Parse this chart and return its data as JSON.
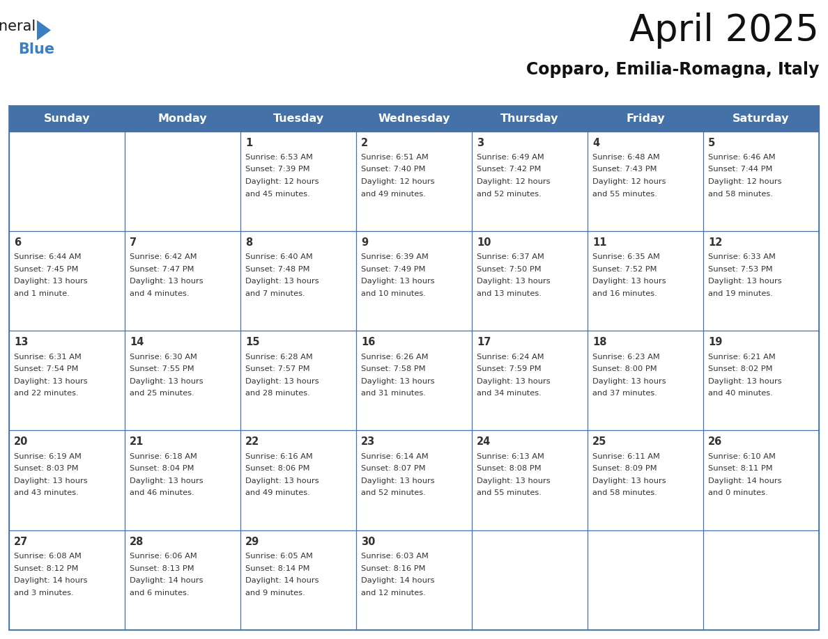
{
  "title": "April 2025",
  "subtitle": "Copparo, Emilia-Romagna, Italy",
  "header_bg": "#4472a8",
  "header_text_color": "#ffffff",
  "cell_bg_light": "#f2f5fb",
  "cell_bg_white": "#ffffff",
  "border_color": "#4472a8",
  "text_color": "#333333",
  "days_of_week": [
    "Sunday",
    "Monday",
    "Tuesday",
    "Wednesday",
    "Thursday",
    "Friday",
    "Saturday"
  ],
  "calendar_data": [
    [
      {
        "day": "",
        "info": ""
      },
      {
        "day": "",
        "info": ""
      },
      {
        "day": "1",
        "info": "Sunrise: 6:53 AM\nSunset: 7:39 PM\nDaylight: 12 hours\nand 45 minutes."
      },
      {
        "day": "2",
        "info": "Sunrise: 6:51 AM\nSunset: 7:40 PM\nDaylight: 12 hours\nand 49 minutes."
      },
      {
        "day": "3",
        "info": "Sunrise: 6:49 AM\nSunset: 7:42 PM\nDaylight: 12 hours\nand 52 minutes."
      },
      {
        "day": "4",
        "info": "Sunrise: 6:48 AM\nSunset: 7:43 PM\nDaylight: 12 hours\nand 55 minutes."
      },
      {
        "day": "5",
        "info": "Sunrise: 6:46 AM\nSunset: 7:44 PM\nDaylight: 12 hours\nand 58 minutes."
      }
    ],
    [
      {
        "day": "6",
        "info": "Sunrise: 6:44 AM\nSunset: 7:45 PM\nDaylight: 13 hours\nand 1 minute."
      },
      {
        "day": "7",
        "info": "Sunrise: 6:42 AM\nSunset: 7:47 PM\nDaylight: 13 hours\nand 4 minutes."
      },
      {
        "day": "8",
        "info": "Sunrise: 6:40 AM\nSunset: 7:48 PM\nDaylight: 13 hours\nand 7 minutes."
      },
      {
        "day": "9",
        "info": "Sunrise: 6:39 AM\nSunset: 7:49 PM\nDaylight: 13 hours\nand 10 minutes."
      },
      {
        "day": "10",
        "info": "Sunrise: 6:37 AM\nSunset: 7:50 PM\nDaylight: 13 hours\nand 13 minutes."
      },
      {
        "day": "11",
        "info": "Sunrise: 6:35 AM\nSunset: 7:52 PM\nDaylight: 13 hours\nand 16 minutes."
      },
      {
        "day": "12",
        "info": "Sunrise: 6:33 AM\nSunset: 7:53 PM\nDaylight: 13 hours\nand 19 minutes."
      }
    ],
    [
      {
        "day": "13",
        "info": "Sunrise: 6:31 AM\nSunset: 7:54 PM\nDaylight: 13 hours\nand 22 minutes."
      },
      {
        "day": "14",
        "info": "Sunrise: 6:30 AM\nSunset: 7:55 PM\nDaylight: 13 hours\nand 25 minutes."
      },
      {
        "day": "15",
        "info": "Sunrise: 6:28 AM\nSunset: 7:57 PM\nDaylight: 13 hours\nand 28 minutes."
      },
      {
        "day": "16",
        "info": "Sunrise: 6:26 AM\nSunset: 7:58 PM\nDaylight: 13 hours\nand 31 minutes."
      },
      {
        "day": "17",
        "info": "Sunrise: 6:24 AM\nSunset: 7:59 PM\nDaylight: 13 hours\nand 34 minutes."
      },
      {
        "day": "18",
        "info": "Sunrise: 6:23 AM\nSunset: 8:00 PM\nDaylight: 13 hours\nand 37 minutes."
      },
      {
        "day": "19",
        "info": "Sunrise: 6:21 AM\nSunset: 8:02 PM\nDaylight: 13 hours\nand 40 minutes."
      }
    ],
    [
      {
        "day": "20",
        "info": "Sunrise: 6:19 AM\nSunset: 8:03 PM\nDaylight: 13 hours\nand 43 minutes."
      },
      {
        "day": "21",
        "info": "Sunrise: 6:18 AM\nSunset: 8:04 PM\nDaylight: 13 hours\nand 46 minutes."
      },
      {
        "day": "22",
        "info": "Sunrise: 6:16 AM\nSunset: 8:06 PM\nDaylight: 13 hours\nand 49 minutes."
      },
      {
        "day": "23",
        "info": "Sunrise: 6:14 AM\nSunset: 8:07 PM\nDaylight: 13 hours\nand 52 minutes."
      },
      {
        "day": "24",
        "info": "Sunrise: 6:13 AM\nSunset: 8:08 PM\nDaylight: 13 hours\nand 55 minutes."
      },
      {
        "day": "25",
        "info": "Sunrise: 6:11 AM\nSunset: 8:09 PM\nDaylight: 13 hours\nand 58 minutes."
      },
      {
        "day": "26",
        "info": "Sunrise: 6:10 AM\nSunset: 8:11 PM\nDaylight: 14 hours\nand 0 minutes."
      }
    ],
    [
      {
        "day": "27",
        "info": "Sunrise: 6:08 AM\nSunset: 8:12 PM\nDaylight: 14 hours\nand 3 minutes."
      },
      {
        "day": "28",
        "info": "Sunrise: 6:06 AM\nSunset: 8:13 PM\nDaylight: 14 hours\nand 6 minutes."
      },
      {
        "day": "29",
        "info": "Sunrise: 6:05 AM\nSunset: 8:14 PM\nDaylight: 14 hours\nand 9 minutes."
      },
      {
        "day": "30",
        "info": "Sunrise: 6:03 AM\nSunset: 8:16 PM\nDaylight: 14 hours\nand 12 minutes."
      },
      {
        "day": "",
        "info": ""
      },
      {
        "day": "",
        "info": ""
      },
      {
        "day": "",
        "info": ""
      }
    ]
  ],
  "logo_color_general": "#1a1a1a",
  "logo_color_blue": "#3a7fc1",
  "logo_triangle_color": "#3a7fc1",
  "title_fontsize": 38,
  "subtitle_fontsize": 17,
  "header_fontsize": 11.5,
  "day_num_fontsize": 10.5,
  "info_fontsize": 8.2
}
